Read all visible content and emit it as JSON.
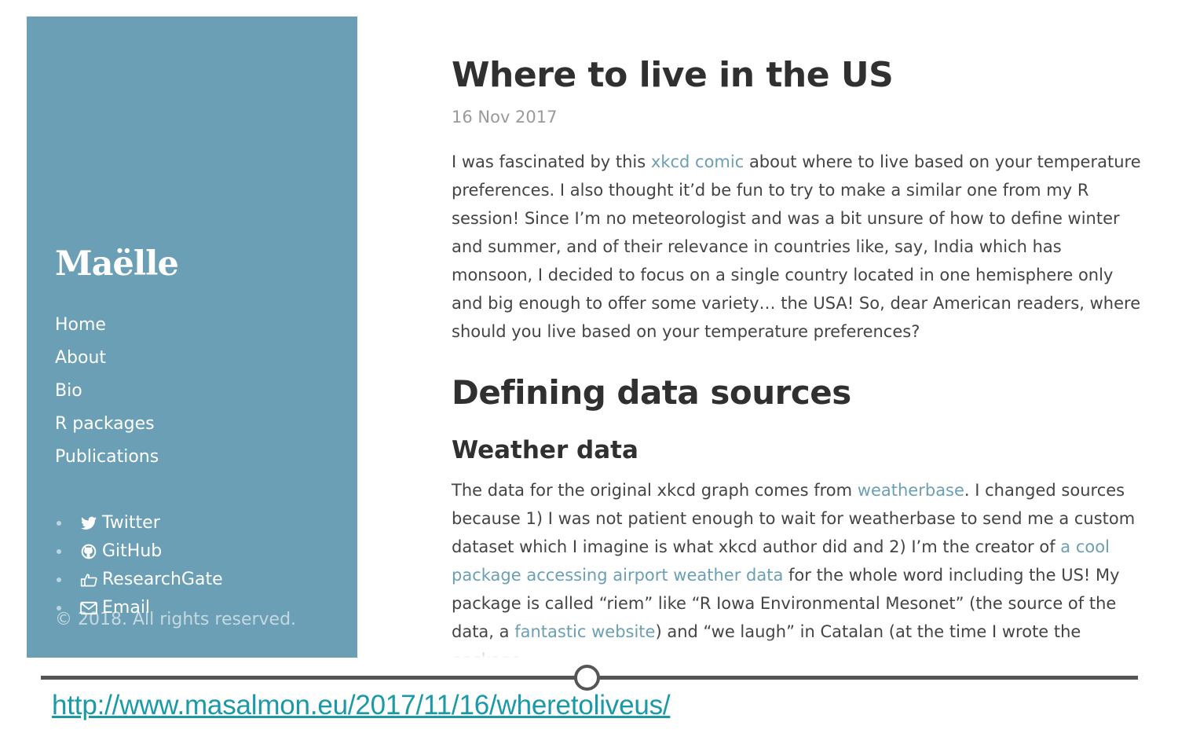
{
  "sidebar": {
    "brand": "Maëlle",
    "nav": [
      "Home",
      "About",
      "Bio",
      "R packages",
      "Publications"
    ],
    "social": [
      {
        "label": "Twitter",
        "icon": "twitter-icon"
      },
      {
        "label": "GitHub",
        "icon": "github-icon"
      },
      {
        "label": "ResearchGate",
        "icon": "thumbs-up-icon"
      },
      {
        "label": "Email",
        "icon": "envelope-icon"
      }
    ],
    "copyright": "© 2018. All rights reserved.",
    "color": "#6b9fb5"
  },
  "post": {
    "title": "Where to live in the US",
    "date": "16 Nov 2017",
    "intro": {
      "before_link": "I was fascinated by this ",
      "link": "xkcd comic",
      "after_link": " about where to live based on your temperature preferences. I also thought it’d be fun to try to make a similar one from my R session! Since I’m no meteorologist and was a bit unsure of how to define winter and summer, and of their relevance in countries like, say, India which has monsoon, I decided to focus on a single country located in one hemisphere only and big enough to offer some variety… the USA! So, dear American readers, where should you live based on your temperature preferences?"
    },
    "h2": "Defining data sources",
    "h3": "Weather data",
    "weather": {
      "t1": "The data for the original xkcd graph comes from ",
      "link1": "weatherbase",
      "t2": ". I changed sources because 1) I was not patient enough to wait for weatherbase to send me a custom dataset which I imagine is what xkcd author did and 2) I’m the creator of ",
      "link2": "a cool package accessing airport weather data",
      "t3": " for the whole word including the US! My package is called “riem” like “R Iowa Environmental Mesonet” (the source of the data, a ",
      "link3": "fantastic website",
      "t4": ") and “we laugh” in Catalan (at the time I wrote the package"
    },
    "link_color": "#6b9fb5"
  },
  "footer": {
    "url": "http://www.masalmon.eu/2017/11/16/wheretoliveus/",
    "url_color": "#1a9aa8"
  }
}
